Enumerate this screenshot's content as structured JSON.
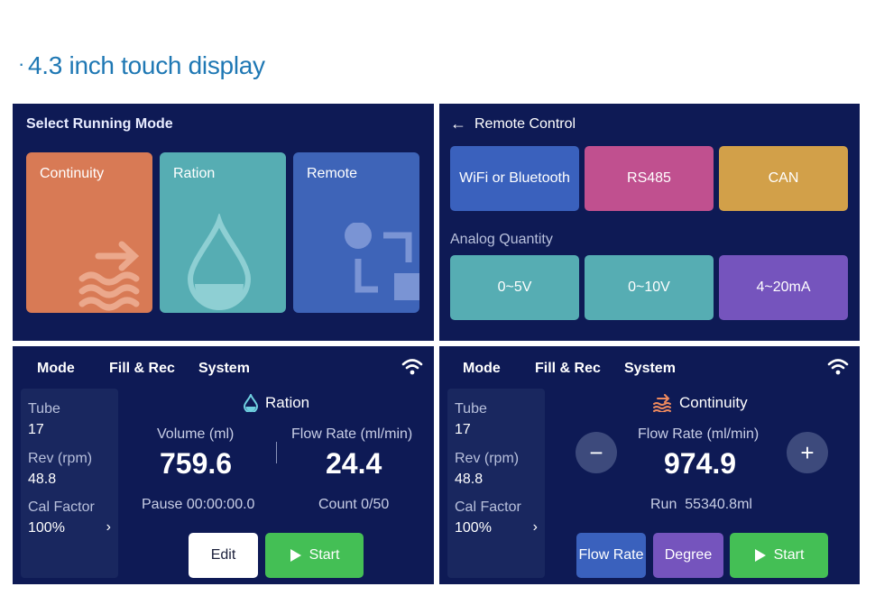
{
  "heading": {
    "bullet": "·",
    "text": "4.3 inch touch display"
  },
  "panel1": {
    "title": "Select Running Mode",
    "modes": [
      {
        "label": "Continuity",
        "icon": "continuity-icon"
      },
      {
        "label": "Ration",
        "icon": "drop-icon"
      },
      {
        "label": "Remote",
        "icon": "remote-icon"
      }
    ]
  },
  "panel2": {
    "back": "←",
    "title": "Remote Control",
    "tiles": [
      "WiFi or Bluetooth",
      "RS485",
      "CAN"
    ],
    "analog_label": "Analog Quantity",
    "analog": [
      "0~5V",
      "0~10V",
      "4~20mA"
    ]
  },
  "ration": {
    "menu": [
      "Mode",
      "Fill & Rec",
      "System"
    ],
    "side": {
      "tube_label": "Tube",
      "tube": "17",
      "rev_label": "Rev (rpm)",
      "rev": "48.8",
      "cal_label": "Cal Factor",
      "cal": "100%",
      "chev": "›"
    },
    "mode": "Ration",
    "volume_label": "Volume (ml)",
    "volume": "759.6",
    "flow_label": "Flow Rate (ml/min)",
    "flow": "24.4",
    "pause": "Pause 00:00:00.0",
    "count": "Count 0/50",
    "edit": "Edit",
    "start": "Start"
  },
  "continuity": {
    "menu": [
      "Mode",
      "Fill & Rec",
      "System"
    ],
    "side": {
      "tube_label": "Tube",
      "tube": "17",
      "rev_label": "Rev (rpm)",
      "rev": "48.8",
      "cal_label": "Cal Factor",
      "cal": "100%",
      "chev": "›"
    },
    "mode": "Continuity",
    "flow_label": "Flow Rate (ml/min)",
    "flow": "974.9",
    "minus": "−",
    "plus": "+",
    "run": "Run  55340.8ml",
    "flow_btn": "Flow Rate",
    "degree_btn": "Degree",
    "start": "Start"
  },
  "colors": {
    "panel": "#0e1a55",
    "continuity": "#d87a55",
    "ration": "#56adb3",
    "remote": "#3e64b8",
    "green": "#44bf55"
  }
}
